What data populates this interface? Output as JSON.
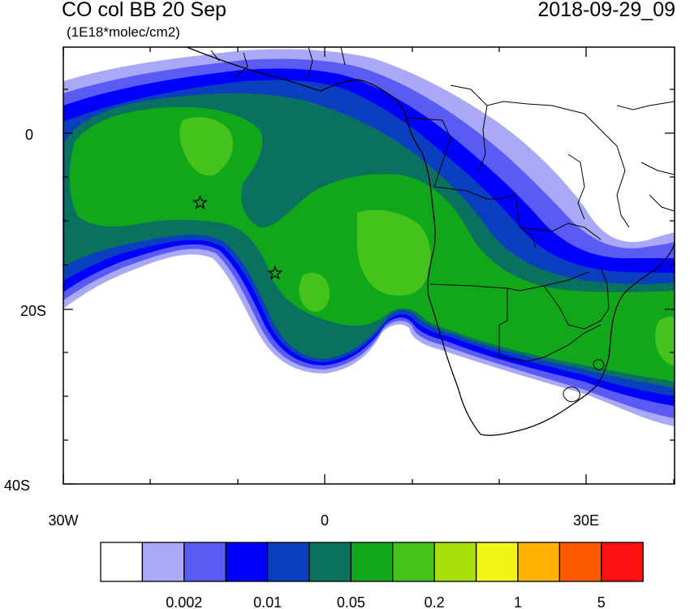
{
  "header": {
    "title": "CO col BB 20 Sep",
    "units": "(1E18*molec/cm2)",
    "datetime": "2018-09-29_09"
  },
  "axes": {
    "lat_ticks": [
      "0",
      "20S",
      "40S"
    ],
    "lon_ticks": [
      "30W",
      "0",
      "30E"
    ]
  },
  "markers": [
    {
      "name": "site-1",
      "symbol": "star",
      "lon": -14.3,
      "lat": -7.9
    },
    {
      "name": "site-2",
      "symbol": "star",
      "lon": -5.7,
      "lat": -15.9
    }
  ],
  "colorbar": {
    "colors": [
      "#ffffff",
      "#a9a9f8",
      "#5a5af5",
      "#0000ff",
      "#0a3fc0",
      "#0a7060",
      "#10a81a",
      "#45c31c",
      "#a8e10a",
      "#f0f51a",
      "#ffb300",
      "#ff5a00",
      "#ff1010"
    ],
    "labels": [
      "0.002",
      "0.01",
      "0.05",
      "0.2",
      "1",
      "5"
    ]
  }
}
